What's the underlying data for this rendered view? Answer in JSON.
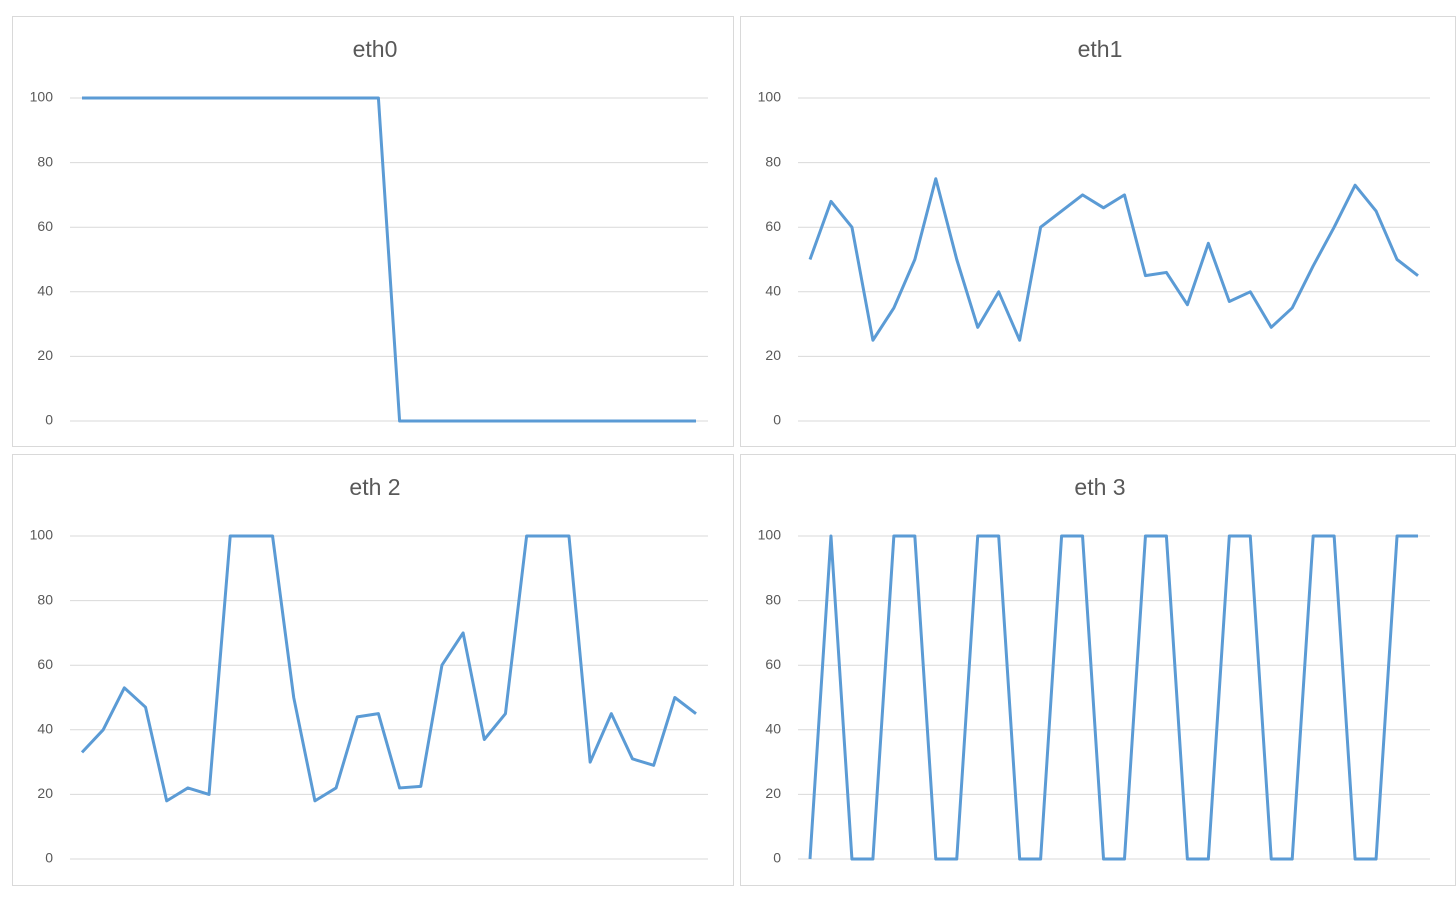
{
  "chart_data": [
    {
      "type": "line",
      "title": "eth0",
      "color": "#5b9bd5",
      "ylim": [
        0,
        100
      ],
      "yticks": [
        0,
        20,
        40,
        60,
        80,
        100
      ],
      "grid": true,
      "values": [
        100,
        100,
        100,
        100,
        100,
        100,
        100,
        100,
        100,
        100,
        100,
        100,
        100,
        100,
        100,
        0,
        0,
        0,
        0,
        0,
        0,
        0,
        0,
        0,
        0,
        0,
        0,
        0,
        0,
        0
      ]
    },
    {
      "type": "line",
      "title": "eth1",
      "color": "#5b9bd5",
      "ylim": [
        0,
        100
      ],
      "yticks": [
        0,
        20,
        40,
        60,
        80,
        100
      ],
      "grid": true,
      "values": [
        50,
        68,
        60,
        25,
        35,
        50,
        75,
        50,
        29,
        40,
        25,
        60,
        65,
        70,
        66,
        70,
        45,
        46,
        36,
        55,
        37,
        40,
        29,
        35,
        48,
        60,
        73,
        65,
        50,
        45
      ]
    },
    {
      "type": "line",
      "title": "eth 2",
      "color": "#5b9bd5",
      "ylim": [
        0,
        100
      ],
      "yticks": [
        0,
        20,
        40,
        60,
        80,
        100
      ],
      "grid": true,
      "values": [
        33,
        40,
        53,
        47,
        18,
        22,
        20,
        100,
        100,
        100,
        50,
        18,
        22,
        44,
        45,
        22,
        22.5,
        60,
        70,
        37,
        45,
        100,
        100,
        100,
        30,
        45,
        31,
        29,
        50,
        45
      ]
    },
    {
      "type": "line",
      "title": "eth 3",
      "color": "#5b9bd5",
      "ylim": [
        0,
        100
      ],
      "yticks": [
        0,
        20,
        40,
        60,
        80,
        100
      ],
      "grid": true,
      "values": [
        0,
        100,
        0,
        0,
        100,
        100,
        0,
        0,
        100,
        100,
        0,
        0,
        100,
        100,
        0,
        0,
        100,
        100,
        0,
        0,
        100,
        100,
        0,
        0,
        100,
        100,
        0,
        0,
        100,
        100
      ]
    }
  ]
}
